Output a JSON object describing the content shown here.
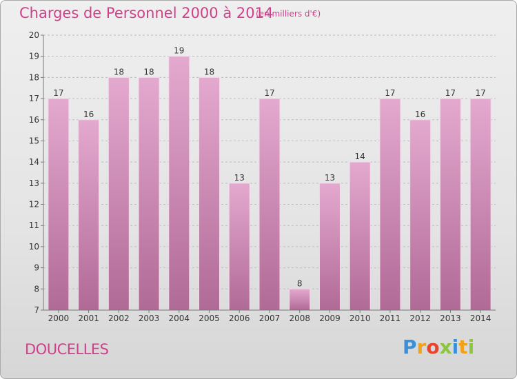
{
  "title": "Charges de Personnel 2000 à 2014",
  "subtitle": "(en milliers d'€)",
  "town": "DOUCELLES",
  "logo": {
    "text": "Proxiti",
    "letters": [
      {
        "char": "P",
        "color": "#3a8fd8"
      },
      {
        "char": "r",
        "color": "#f2a11a"
      },
      {
        "char": "o",
        "color": "#e8452c"
      },
      {
        "char": "x",
        "color": "#8cc63e"
      },
      {
        "char": "i",
        "color": "#3a8fd8"
      },
      {
        "char": "t",
        "color": "#f2a11a"
      },
      {
        "char": "i",
        "color": "#8cc63e"
      }
    ]
  },
  "colors": {
    "accent": "#d0408a",
    "bar_top": "#e4a9cf",
    "bar_bottom": "#b06a96",
    "grid": "#bdbdbd",
    "axis_text": "#333333"
  },
  "chart_data": {
    "type": "bar",
    "categories": [
      "2000",
      "2001",
      "2002",
      "2003",
      "2004",
      "2005",
      "2006",
      "2007",
      "2008",
      "2009",
      "2010",
      "2011",
      "2012",
      "2013",
      "2014"
    ],
    "values": [
      17,
      16,
      18,
      18,
      19,
      18,
      13,
      17,
      8,
      13,
      14,
      17,
      16,
      17,
      17
    ],
    "data_labels": [
      "17",
      "16",
      "18",
      "18",
      "19",
      "18",
      "13",
      "17",
      "8",
      "13",
      "14",
      "17",
      "16",
      "17",
      "17"
    ],
    "ylim": [
      7,
      20
    ],
    "yticks": [
      7,
      8,
      9,
      10,
      11,
      12,
      13,
      14,
      15,
      16,
      17,
      18,
      19,
      20
    ],
    "grid": "horizontal dashed",
    "title": "Charges de Personnel 2000 à 2014",
    "xlabel": "",
    "ylabel": ""
  }
}
